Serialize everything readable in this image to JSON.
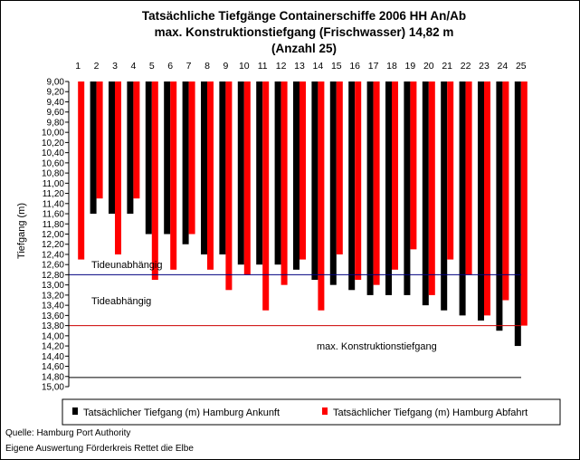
{
  "chart_data": {
    "type": "bar",
    "title": [
      "Tatsächliche Tiefgänge Containerschiffe 2006 HH An/Ab",
      "max. Konstruktionstiefgang (Frischwasser) 14,82 m",
      "(Anzahl 25)"
    ],
    "ylabel": "Tiefgang (m)",
    "xlabel": "",
    "ylim": [
      9.0,
      15.0
    ],
    "y_axis_inverted": true,
    "y_tick_step": 0.2,
    "y_tick_labels": [
      "9,00",
      "9,20",
      "9,40",
      "9,60",
      "9,80",
      "10,00",
      "10,20",
      "10,40",
      "10,60",
      "10,80",
      "11,00",
      "11,20",
      "11,40",
      "11,60",
      "11,80",
      "12,00",
      "12,20",
      "12,40",
      "12,60",
      "12,80",
      "13,00",
      "13,20",
      "13,40",
      "13,60",
      "13,80",
      "14,00",
      "14,20",
      "14,40",
      "14,60",
      "14,80",
      "15,00"
    ],
    "categories": [
      "1",
      "2",
      "3",
      "4",
      "5",
      "6",
      "7",
      "8",
      "9",
      "10",
      "11",
      "12",
      "13",
      "14",
      "15",
      "16",
      "17",
      "18",
      "19",
      "20",
      "21",
      "22",
      "23",
      "24",
      "25"
    ],
    "series": [
      {
        "name": "Tatsächlicher Tiefgang (m) Hamburg Ankunft",
        "color": "#000000",
        "values": [
          null,
          11.6,
          11.6,
          11.6,
          12.0,
          12.0,
          12.2,
          12.4,
          12.4,
          12.6,
          12.6,
          12.6,
          12.7,
          12.9,
          13.0,
          13.1,
          13.2,
          13.2,
          13.2,
          13.4,
          13.5,
          13.6,
          13.7,
          13.9,
          14.2
        ]
      },
      {
        "name": "Tatsächlicher Tiefgang (m) Hamburg Abfahrt",
        "color": "#ff0000",
        "values": [
          12.5,
          11.3,
          12.4,
          11.3,
          12.9,
          12.7,
          12.0,
          12.7,
          13.1,
          12.8,
          13.5,
          13.0,
          12.5,
          13.5,
          12.4,
          12.9,
          13.0,
          12.7,
          12.3,
          13.2,
          12.5,
          12.8,
          13.6,
          13.3,
          13.8
        ]
      }
    ],
    "reference_lines": [
      {
        "value": 12.8,
        "color": "#000080"
      },
      {
        "value": 13.8,
        "color": "#cc0000"
      },
      {
        "value": 14.82,
        "color": "#000000"
      }
    ],
    "annotations": {
      "tideunabhaengig": "Tideunabhängig",
      "tideabhaengig": "Tideabhängig",
      "max_konstruktion": "max. Konstruktionstiefgang"
    },
    "legend_placement": "bottom",
    "grid": false
  },
  "footer": {
    "source": "Quelle: Hamburg Port Authority",
    "evaluation": "Eigene Auswertung Förderkreis Rettet die Elbe"
  }
}
